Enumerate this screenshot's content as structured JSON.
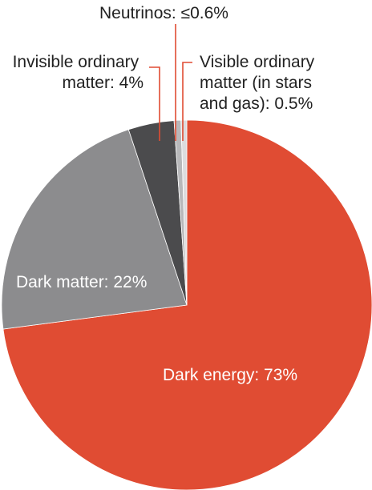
{
  "chart_data": {
    "type": "pie",
    "slices": [
      {
        "name": "Dark energy",
        "value": 73,
        "label": "Dark energy: 73%",
        "color": "#e04c33"
      },
      {
        "name": "Dark matter",
        "value": 22,
        "label": "Dark matter: 22%",
        "color": "#8c8c8e"
      },
      {
        "name": "Invisible ordinary matter",
        "value": 4,
        "label": "Invisible ordinary matter: 4%",
        "label_lines": [
          "Invisible ordinary",
          "matter: 4%"
        ],
        "color": "#4b4b4d"
      },
      {
        "name": "Neutrinos",
        "value": 0.6,
        "label": "Neutrinos: ≤0.6%",
        "color": "#b8b8ba"
      },
      {
        "name": "Visible ordinary matter",
        "value": 0.5,
        "label": "Visible ordinary matter (in stars and gas): 0.5%",
        "label_lines": [
          "Visible ordinary",
          "matter (in stars",
          "and gas): 0.5%"
        ],
        "color": "#dcdcde"
      }
    ],
    "title": "",
    "legend": "none"
  }
}
